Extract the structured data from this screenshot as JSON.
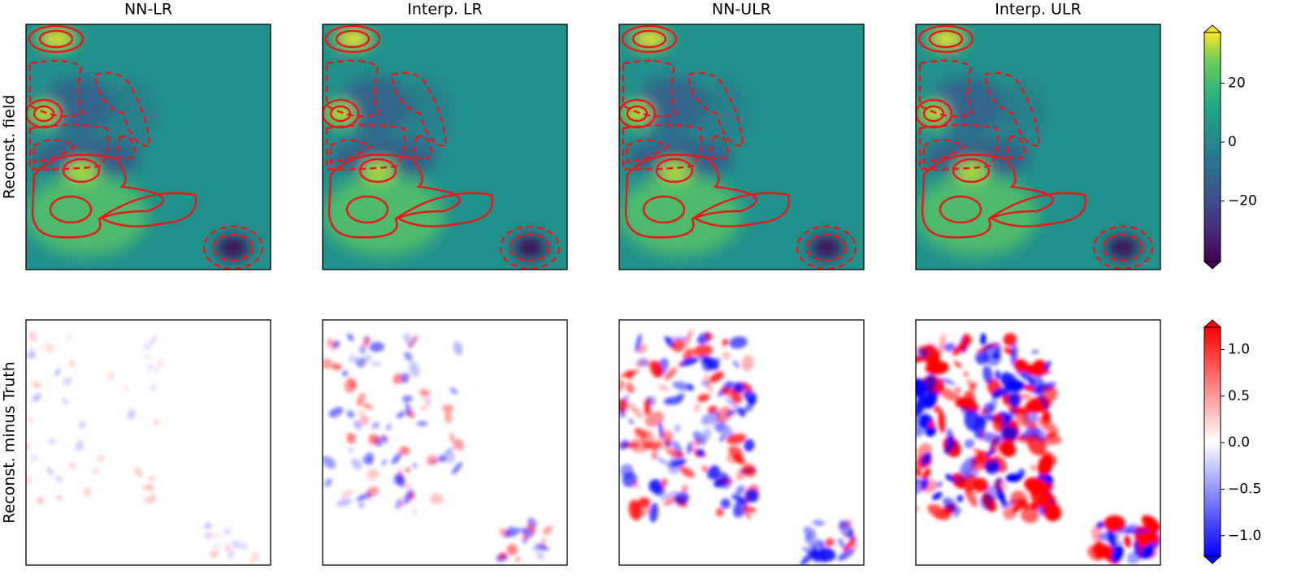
{
  "chart_data": {
    "type": "heatmap",
    "column_titles": [
      "NN-LR",
      "Interp. LR",
      "NN-ULR",
      "Interp. ULR"
    ],
    "row_labels": [
      "Reconst. field",
      "Reconst. minus Truth"
    ],
    "colorbars": [
      {
        "ylim": [
          -40.5,
          37.2
        ],
        "yticks": [
          20,
          0,
          {
            "value": -20,
            "label": "−20"
          }
        ]
      },
      {
        "ylim": [
          -1.22,
          1.24
        ],
        "yticks": [
          {
            "value": 1.0,
            "label": "1.0"
          },
          {
            "value": 0.5,
            "label": "0.5"
          },
          {
            "value": 0.0,
            "label": "0.0"
          },
          {
            "value": -0.5,
            "label": "−0.5"
          },
          {
            "value": -1.0,
            "label": "−1.0"
          }
        ]
      }
    ]
  }
}
